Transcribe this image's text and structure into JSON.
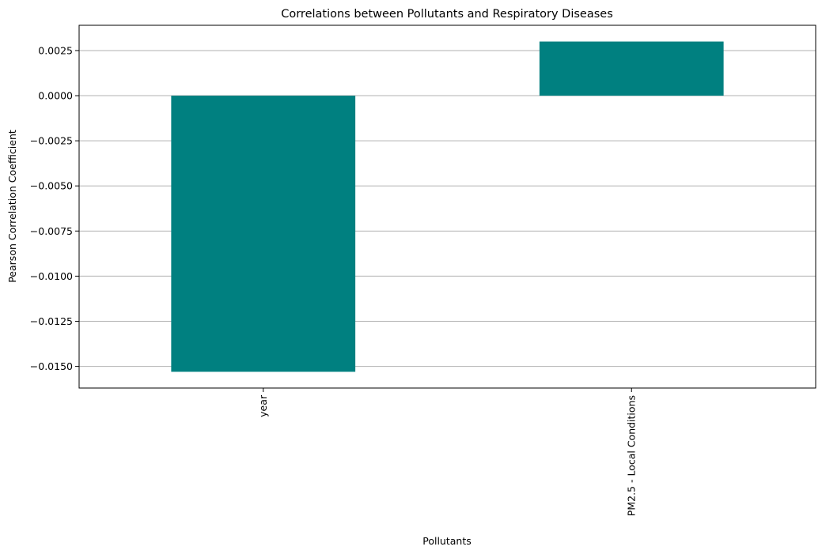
{
  "chart_data": {
    "type": "bar",
    "title": "Correlations between Pollutants and Respiratory Diseases",
    "xlabel": "Pollutants",
    "ylabel": "Pearson Correlation Coefficient",
    "categories": [
      "year",
      "PM2.5 - Local Conditions"
    ],
    "values": [
      -0.0153,
      0.003
    ],
    "ylim": [
      -0.0162,
      0.0039
    ],
    "yticks": [
      0.0025,
      0.0,
      -0.0025,
      -0.005,
      -0.0075,
      -0.01,
      -0.0125,
      -0.015
    ],
    "ytick_labels": [
      "0.0025",
      "0.0000",
      "−0.0025",
      "−0.0050",
      "−0.0075",
      "−0.0100",
      "−0.0125",
      "−0.0150"
    ],
    "grid": "y",
    "bar_color": "#008080",
    "grid_color": "#b0b0b0",
    "xtick_rotation": "vertical"
  }
}
